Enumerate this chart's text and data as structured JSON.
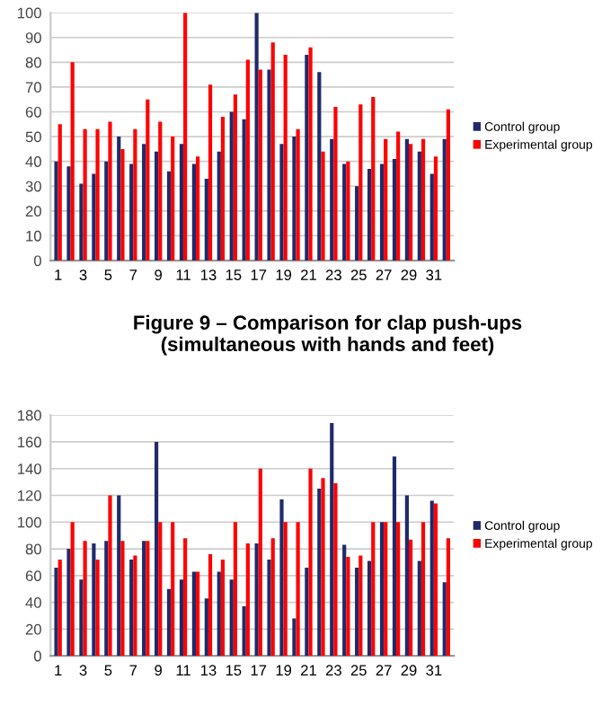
{
  "chart_data": [
    {
      "type": "bar",
      "categories": [
        "1",
        null,
        "3",
        null,
        "5",
        null,
        "7",
        null,
        "9",
        null,
        "11",
        null,
        "13",
        null,
        "15",
        null,
        "17",
        null,
        "19",
        null,
        "21",
        null,
        "23",
        null,
        "25",
        null,
        "27",
        null,
        "29",
        null,
        "31",
        null
      ],
      "series": [
        {
          "name": "Control group",
          "color": "#1f2a6b",
          "values": [
            40,
            38,
            31,
            35,
            40,
            50,
            39,
            47,
            44,
            36,
            47,
            39,
            33,
            44,
            60,
            57,
            100,
            77,
            47,
            50,
            83,
            76,
            49,
            39,
            30,
            37,
            39,
            41,
            49,
            44,
            35,
            49
          ]
        },
        {
          "name": "Experimental group",
          "color": "#ff0000",
          "values": [
            55,
            80,
            53,
            53,
            56,
            45,
            53,
            65,
            56,
            50,
            100,
            42,
            71,
            58,
            67,
            81,
            77,
            88,
            83,
            53,
            86,
            44,
            62,
            40,
            63,
            66,
            49,
            52,
            47,
            49,
            42,
            61
          ]
        }
      ],
      "ylim": [
        0,
        100
      ],
      "yticks": [
        0,
        10,
        20,
        30,
        40,
        50,
        60,
        70,
        80,
        90,
        100
      ],
      "grid": "y",
      "legend": "right",
      "annotations": [
        "Figure 9 – Comparison for clap push-ups\n(simultaneous with hands and feet)"
      ]
    },
    {
      "type": "bar",
      "categories": [
        "1",
        null,
        "3",
        null,
        "5",
        null,
        "7",
        null,
        "9",
        null,
        "11",
        null,
        "13",
        null,
        "15",
        null,
        "17",
        null,
        "19",
        null,
        "21",
        null,
        "23",
        null,
        "25",
        null,
        "27",
        null,
        "29",
        null,
        "31",
        null
      ],
      "series": [
        {
          "name": "Control group",
          "color": "#1f2a6b",
          "values": [
            66,
            80,
            57,
            84,
            86,
            120,
            72,
            86,
            160,
            50,
            57,
            63,
            43,
            63,
            57,
            37,
            84,
            72,
            117,
            28,
            66,
            125,
            174,
            83,
            66,
            71,
            100,
            149,
            120,
            71,
            116,
            55
          ]
        },
        {
          "name": "Experimental group",
          "color": "#ff0000",
          "values": [
            72,
            100,
            86,
            72,
            120,
            86,
            75,
            86,
            100,
            100,
            88,
            63,
            76,
            72,
            100,
            84,
            140,
            88,
            100,
            100,
            140,
            133,
            129,
            74,
            75,
            100,
            100,
            100,
            87,
            100,
            114,
            88
          ]
        }
      ],
      "ylim": [
        0,
        180
      ],
      "yticks": [
        0,
        20,
        40,
        60,
        80,
        100,
        120,
        140,
        160,
        180
      ],
      "grid": "y",
      "legend": "right"
    }
  ]
}
